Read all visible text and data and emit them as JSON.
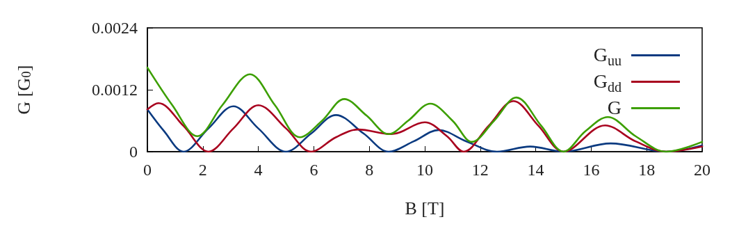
{
  "chart_data": {
    "type": "line",
    "xlabel": "B [T]",
    "ylabel": "G [G$_{0}$]",
    "xlim": [
      0,
      20
    ],
    "xticks": [
      0,
      2,
      4,
      6,
      8,
      10,
      12,
      14,
      16,
      18,
      20
    ],
    "ylim": [
      0,
      0.0024
    ],
    "yticks": [
      0,
      0.0012,
      0.0024
    ],
    "grid": false,
    "legend": "top right",
    "marker": "none",
    "line_style": "solid",
    "series": [
      {
        "name": "G$_{uu}$",
        "color": "#0a3a80",
        "x": [
          0,
          0.6,
          1.3,
          2.2,
          3.1,
          4.0,
          5.0,
          5.9,
          6.8,
          7.8,
          8.7,
          9.6,
          10.5,
          11.5,
          12.6,
          13.8,
          15.0,
          16.7,
          18.7,
          20
        ],
        "values": [
          0.00082,
          0.0004,
          0,
          0.00045,
          0.00088,
          0.00045,
          0,
          0.00035,
          0.00071,
          0.00035,
          0,
          0.0002,
          0.00042,
          0.0002,
          0,
          0.0001,
          0,
          0.00016,
          0,
          0.00012
        ]
      },
      {
        "name": "G$_{dd}$",
        "color": "#a8001e",
        "x": [
          0,
          0.4,
          1.3,
          2.2,
          3.1,
          4.0,
          5.0,
          5.9,
          6.8,
          7.6,
          8.8,
          10.0,
          10.8,
          11.4,
          12.3,
          13.2,
          14.1,
          15.0,
          16.5,
          17.6,
          18.7,
          20
        ],
        "values": [
          0.00082,
          0.00094,
          0.0005,
          0,
          0.00045,
          0.0009,
          0.00045,
          0,
          0.00028,
          0.00043,
          0.00034,
          0.00057,
          0.0003,
          0,
          0.0005,
          0.00098,
          0.0005,
          0,
          0.00051,
          0.0002,
          0,
          0.0001
        ]
      },
      {
        "name": "G",
        "color": "#3c9f00",
        "x": [
          0,
          0.9,
          1.8,
          2.7,
          3.7,
          4.6,
          5.5,
          6.3,
          7.1,
          7.9,
          8.7,
          9.4,
          10.2,
          11.0,
          11.7,
          12.5,
          13.3,
          14.2,
          15.0,
          15.8,
          16.6,
          17.6,
          18.7,
          20
        ],
        "values": [
          0.00163,
          0.0009,
          0.0003,
          0.0009,
          0.0015,
          0.0009,
          0.00028,
          0.0006,
          0.00102,
          0.0007,
          0.00034,
          0.0006,
          0.00093,
          0.0006,
          0.00019,
          0.0006,
          0.00105,
          0.0005,
          0,
          0.0004,
          0.00067,
          0.0003,
          0,
          0.00019
        ]
      }
    ]
  }
}
